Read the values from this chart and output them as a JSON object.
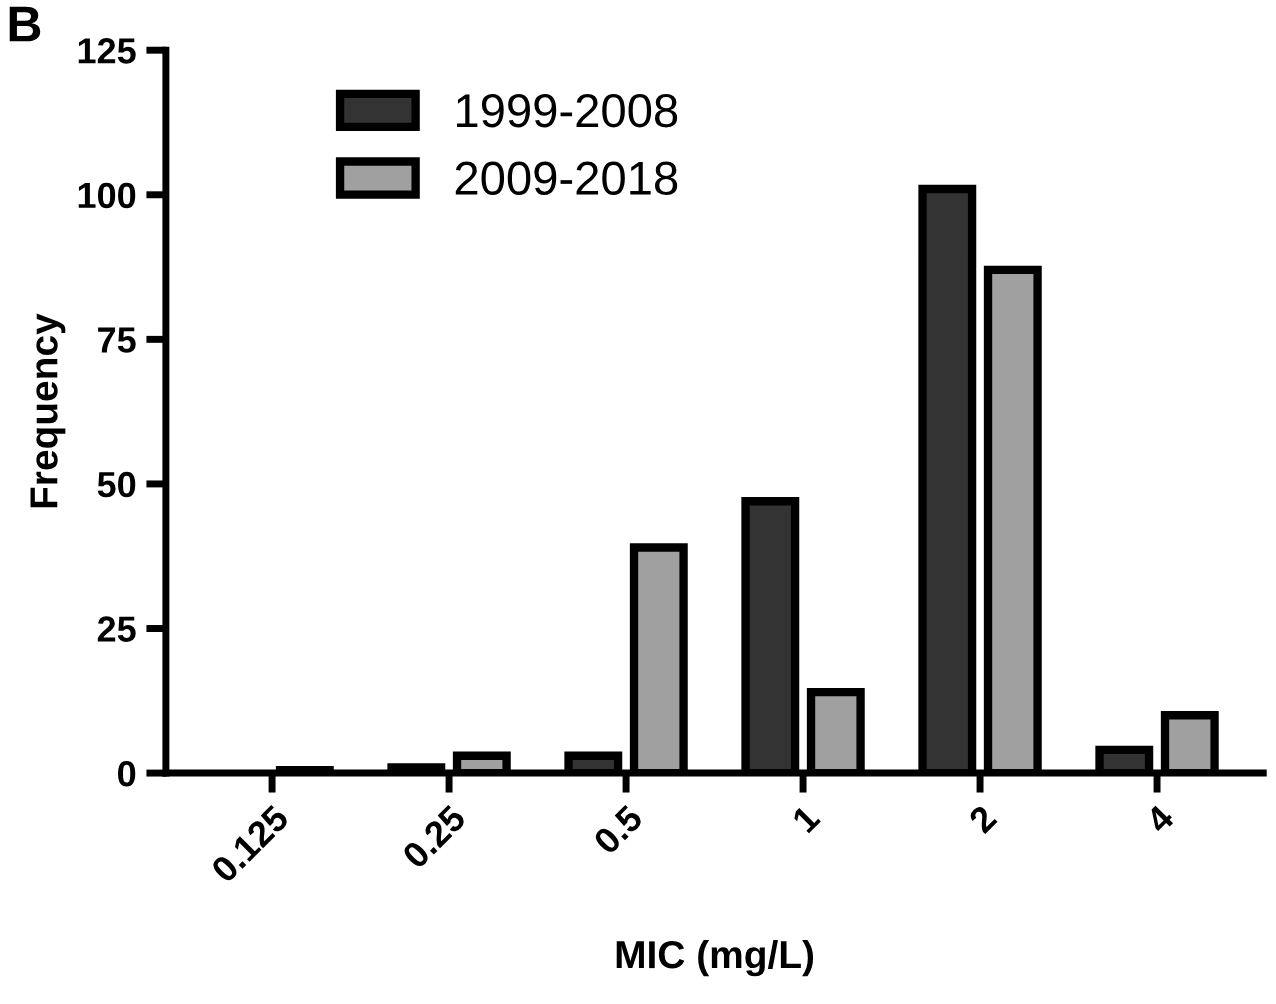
{
  "chart_data": {
    "type": "bar",
    "xlabel": "MIC (mg/L)",
    "ylabel": "Frequency",
    "annotations": [
      "B"
    ],
    "categories": [
      "0.125",
      "0.25",
      "0.5",
      "1",
      "2",
      "4"
    ],
    "series": [
      {
        "name": "1999-2008",
        "color": "#333333",
        "values": [
          null,
          1,
          3,
          47,
          101,
          4
        ]
      },
      {
        "name": "2009-2018",
        "color": "#a0a0a0",
        "values": [
          0.5,
          3,
          39,
          14,
          87,
          10
        ]
      }
    ],
    "ylim": [
      0,
      125
    ],
    "yticks": [
      0,
      25,
      50,
      75,
      100,
      125
    ],
    "grid": false,
    "legend": "top left"
  }
}
